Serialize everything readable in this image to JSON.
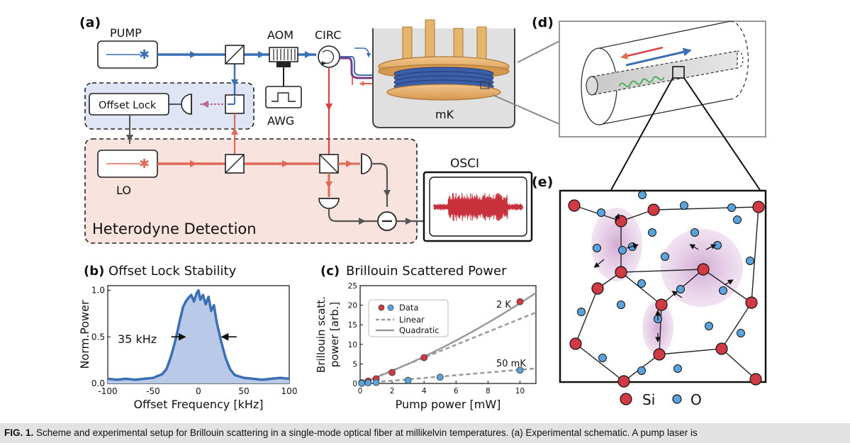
{
  "panels": {
    "a": "(a)",
    "b": "(b)",
    "c": "(c)",
    "d": "(d)",
    "e": "(e)"
  },
  "schematic": {
    "pump": "PUMP",
    "aom": "AOM",
    "circ": "CIRC",
    "offset_lock": "Offset Lock",
    "awg": "AWG",
    "mk": "mK",
    "lo": "LO",
    "osci": "OSCI",
    "heterodyne": "Heterodyne Detection"
  },
  "plot_b": {
    "title": "Offset Lock Stability",
    "annotation": "35 kHz"
  },
  "plot_c": {
    "title": "Brillouin Scattered Power",
    "label_2k": "2 K",
    "label_50mk": "50 mK"
  },
  "lattice_legend": {
    "si": "Si",
    "o": "O"
  },
  "caption": {
    "label": "FIG. 1.",
    "text": "Scheme and experimental setup for Brillouin scattering in a single-mode optical fiber at millikelvin temperatures. (a) Experimental schematic. A pump laser is"
  },
  "chart_data": [
    {
      "type": "area",
      "title": "",
      "xlabel": "Offset Frequency [kHz]",
      "ylabel": "Norm.Power",
      "xlim": [
        -100,
        100
      ],
      "ylim": [
        0,
        1.05
      ],
      "xticks": [
        -100,
        -50,
        0,
        50,
        100
      ],
      "yticks": [
        0.0,
        0.5,
        1.0
      ],
      "ytick_labels": [
        "0.0",
        "0.5",
        "1.0"
      ],
      "color": "#3a6fb5",
      "fill": "#b9c9e8",
      "x": [
        -100,
        -90,
        -80,
        -70,
        -60,
        -50,
        -40,
        -35,
        -30,
        -25,
        -20,
        -17,
        -14,
        -11,
        -8,
        -5,
        -2,
        0,
        2,
        5,
        8,
        11,
        14,
        17,
        20,
        25,
        30,
        35,
        40,
        50,
        60,
        70,
        80,
        90,
        100
      ],
      "y": [
        0.05,
        0.04,
        0.05,
        0.04,
        0.05,
        0.06,
        0.1,
        0.16,
        0.3,
        0.48,
        0.7,
        0.82,
        0.88,
        0.92,
        0.95,
        0.88,
        0.97,
        1.0,
        0.9,
        0.95,
        0.85,
        0.93,
        0.78,
        0.84,
        0.66,
        0.45,
        0.27,
        0.15,
        0.09,
        0.06,
        0.05,
        0.04,
        0.05,
        0.06,
        0.05
      ],
      "annotation": {
        "text": "35 kHz",
        "y": 0.5
      }
    },
    {
      "type": "scatter",
      "title": "",
      "xlabel": "Pump power [mW]",
      "ylabel": "Brillouin scatt. power [arb.]",
      "xlim": [
        0,
        11
      ],
      "ylim": [
        0,
        25
      ],
      "xticks": [
        0,
        2,
        4,
        6,
        8,
        10
      ],
      "yticks": [
        0,
        5,
        10,
        15,
        20,
        25
      ],
      "legend": [
        "Data",
        "Linear",
        "Quadratic"
      ],
      "legend_position": "top-left",
      "series": [
        {
          "name": "2 K",
          "color": "#d03a44",
          "x": [
            0.1,
            0.5,
            1,
            2,
            4,
            10
          ],
          "y": [
            0.2,
            0.6,
            1.2,
            2.8,
            6.6,
            20.9
          ]
        },
        {
          "name": "50 mK",
          "color": "#5ba3dc",
          "x": [
            0.1,
            0.5,
            1,
            3,
            5,
            10
          ],
          "y": [
            0.05,
            0.15,
            0.25,
            0.8,
            1.6,
            3.4
          ]
        }
      ],
      "fits": [
        {
          "name": "Linear",
          "style": "dashed",
          "color": "#999999",
          "slope": 1.65,
          "intercept": 0
        },
        {
          "name": "Quadratic",
          "style": "solid",
          "color": "#999999",
          "a": 0.055,
          "b": 1.5
        },
        {
          "name": "Linear",
          "style": "dashed",
          "color": "#999999",
          "slope": 0.35,
          "intercept": 0
        }
      ]
    }
  ]
}
